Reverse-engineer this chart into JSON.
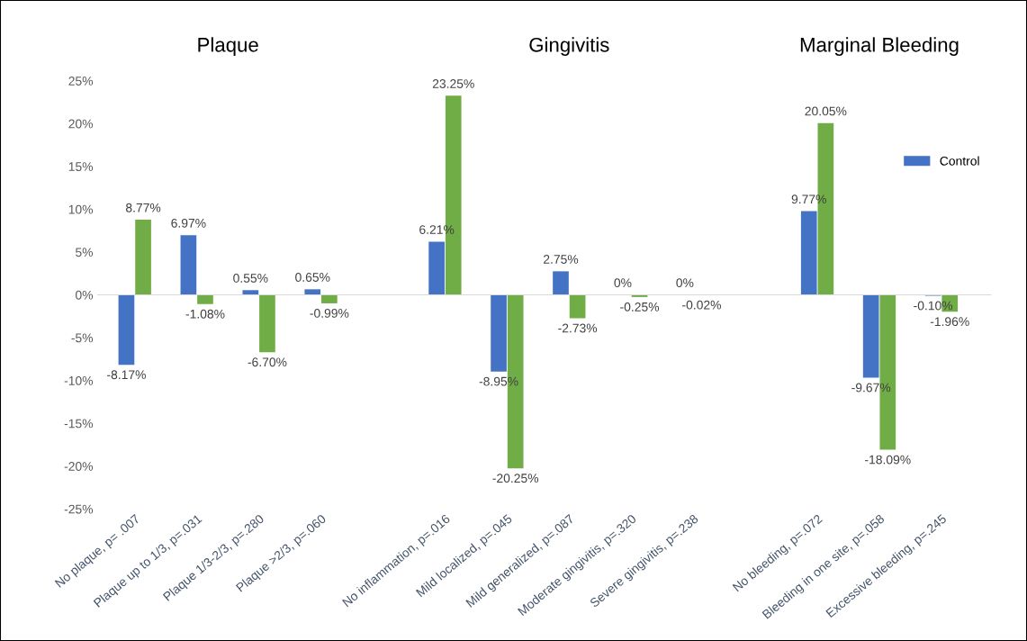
{
  "chart_data": {
    "type": "bar",
    "categories": [
      "No plaque, p= .007",
      "Plaque up to 1/3, p=.031",
      "Plaque 1/3-2/3, p=.280",
      "Plaque >2/3, p=.060",
      null,
      "No inflammation, p=.016",
      "Mild localized, p=.045",
      "Mild generalized, p=.087",
      "Moderate gingivitis, p=.320",
      "Severe gingivitis, p=.238",
      null,
      "No bleeding, p=.072",
      "Bleeding in one site, p=.058",
      "Excessive bleeding, p=.245"
    ],
    "series": [
      {
        "name": "Control",
        "color": "#4472c4",
        "values": [
          -8.17,
          6.97,
          0.55,
          0.65,
          null,
          6.21,
          -8.95,
          2.75,
          0,
          null,
          null,
          9.77,
          -9.67,
          -0.1
        ],
        "value_labels": [
          "-8.17%",
          "6.97%",
          "0.55%",
          "0.65%",
          null,
          "6.21%",
          "-8.95%",
          "2.75%",
          "0%",
          "0%",
          null,
          "9.77%",
          "-9.67%",
          "-0.10%"
        ]
      },
      {
        "color": "#70ad47",
        "values": [
          8.77,
          -1.08,
          -6.7,
          -0.99,
          null,
          23.25,
          -20.25,
          -2.73,
          -0.25,
          -0.02,
          null,
          20.05,
          -18.09,
          -1.96
        ],
        "value_labels": [
          "8.77%",
          "-1.08%",
          "-6.70%",
          "-0.99%",
          null,
          "23.25%",
          "-20.25%",
          "-2.73%",
          "-0.25%",
          "-0.02%",
          null,
          "20.05%",
          "-18.09%",
          "-1.96%"
        ]
      }
    ],
    "ylim": [
      -25,
      25
    ],
    "yticks": [
      {
        "value": -25,
        "label": "-25%"
      },
      {
        "value": -20,
        "label": "-20%"
      },
      {
        "value": -15,
        "label": "-15%"
      },
      {
        "value": -10,
        "label": "-10%"
      },
      {
        "value": -5,
        "label": "-5%"
      },
      {
        "value": 0,
        "label": "0%"
      },
      {
        "value": 5,
        "label": "5%"
      },
      {
        "value": 10,
        "label": "10%"
      },
      {
        "value": 15,
        "label": "15%"
      },
      {
        "value": 20,
        "label": "20%"
      },
      {
        "value": 25,
        "label": "25%"
      }
    ],
    "annotations": [
      "Plaque",
      "Gingivitis",
      "Marginal Bleeding"
    ],
    "legend": "top right"
  }
}
